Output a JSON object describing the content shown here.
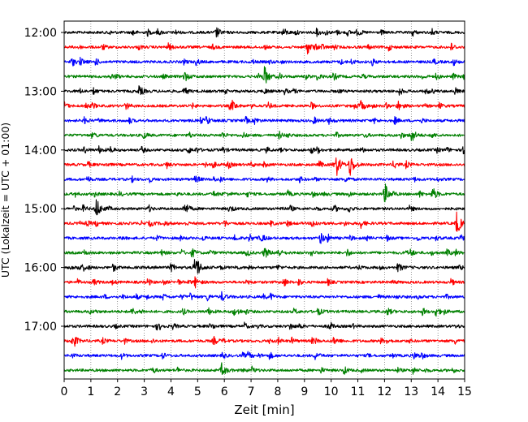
{
  "chart_data": {
    "type": "line",
    "xlabel": "Zeit  [min]",
    "ylabel": "UTC (Lokalzeit = UTC + 01:00)",
    "xlim": [
      0,
      15
    ],
    "xticks": [
      0,
      1,
      2,
      3,
      4,
      5,
      6,
      7,
      8,
      9,
      10,
      11,
      12,
      13,
      14,
      15
    ],
    "x_grid": "dotted vertical",
    "trace_minutes": 15,
    "color_cycle": [
      "#000000",
      "#ff0000",
      "#0000ff",
      "#008000"
    ],
    "hour_labels": [
      "12:00",
      "13:00",
      "14:00",
      "15:00",
      "16:00",
      "17:00"
    ],
    "series": [
      {
        "start": "12:00",
        "events": [
          [
            5.7,
            0.6
          ],
          [
            8.2,
            0.5
          ],
          [
            3.5,
            0.3
          ]
        ]
      },
      {
        "start": "12:15",
        "events": [
          [
            9.1,
            0.8
          ],
          [
            3.9,
            0.35
          ]
        ]
      },
      {
        "start": "12:30",
        "events": [
          [
            0.6,
            0.4
          ]
        ]
      },
      {
        "start": "12:45",
        "events": [
          [
            7.5,
            1.2
          ],
          [
            4.5,
            0.6
          ],
          [
            15.0,
            0.6
          ]
        ]
      },
      {
        "start": "13:00",
        "events": [
          [
            2.8,
            0.5
          ]
        ]
      },
      {
        "start": "13:15",
        "events": [
          [
            6.3,
            0.5
          ],
          [
            11.1,
            0.6
          ],
          [
            2.3,
            0.4
          ],
          [
            12.5,
            0.55
          ]
        ]
      },
      {
        "start": "13:30",
        "events": [
          [
            9.9,
            0.35
          ]
        ]
      },
      {
        "start": "13:45",
        "events": [
          [
            13.0,
            0.9
          ],
          [
            5.9,
            0.35
          ]
        ]
      },
      {
        "start": "14:00",
        "events": [
          [
            1.3,
            0.35
          ]
        ]
      },
      {
        "start": "14:15",
        "events": [
          [
            10.2,
            1.3
          ],
          [
            10.7,
            1.5
          ],
          [
            5.3,
            0.3
          ]
        ]
      },
      {
        "start": "14:30",
        "events": []
      },
      {
        "start": "14:45",
        "events": [
          [
            12.0,
            1.3
          ],
          [
            13.8,
            0.8
          ],
          [
            5.6,
            0.3
          ]
        ]
      },
      {
        "start": "15:00",
        "events": [
          [
            1.2,
            1.3
          ],
          [
            4.5,
            0.8
          ],
          [
            10.1,
            0.4
          ]
        ]
      },
      {
        "start": "15:15",
        "events": [
          [
            14.7,
            1.4
          ],
          [
            9.3,
            0.5
          ],
          [
            11.1,
            0.5
          ],
          [
            3.2,
            0.3
          ]
        ]
      },
      {
        "start": "15:30",
        "events": [
          [
            9.6,
            0.7
          ],
          [
            7.4,
            0.4
          ]
        ]
      },
      {
        "start": "15:45",
        "events": [
          [
            7.5,
            0.7
          ],
          [
            8.0,
            0.5
          ],
          [
            3.6,
            0.35
          ]
        ]
      },
      {
        "start": "16:00",
        "events": [
          [
            4.9,
            2.0
          ],
          [
            4.0,
            0.5
          ],
          [
            0.5,
            0.35
          ],
          [
            12.5,
            0.5
          ]
        ]
      },
      {
        "start": "16:15",
        "events": [
          [
            4.9,
            0.6
          ],
          [
            1.1,
            0.3
          ]
        ]
      },
      {
        "start": "16:30",
        "events": [
          [
            5.9,
            0.5
          ]
        ]
      },
      {
        "start": "16:45",
        "events": [
          [
            13.9,
            0.6
          ],
          [
            12.1,
            0.4
          ],
          [
            5.4,
            0.35
          ],
          [
            9.5,
            0.4
          ]
        ]
      },
      {
        "start": "17:00",
        "events": []
      },
      {
        "start": "17:15",
        "events": [
          [
            0.4,
            0.5
          ],
          [
            5.6,
            0.45
          ],
          [
            10.1,
            0.45
          ]
        ]
      },
      {
        "start": "17:30",
        "events": [
          [
            9.4,
            0.4
          ],
          [
            13.1,
            0.35
          ]
        ]
      },
      {
        "start": "17:45",
        "events": [
          [
            5.9,
            0.8
          ]
        ]
      }
    ]
  }
}
